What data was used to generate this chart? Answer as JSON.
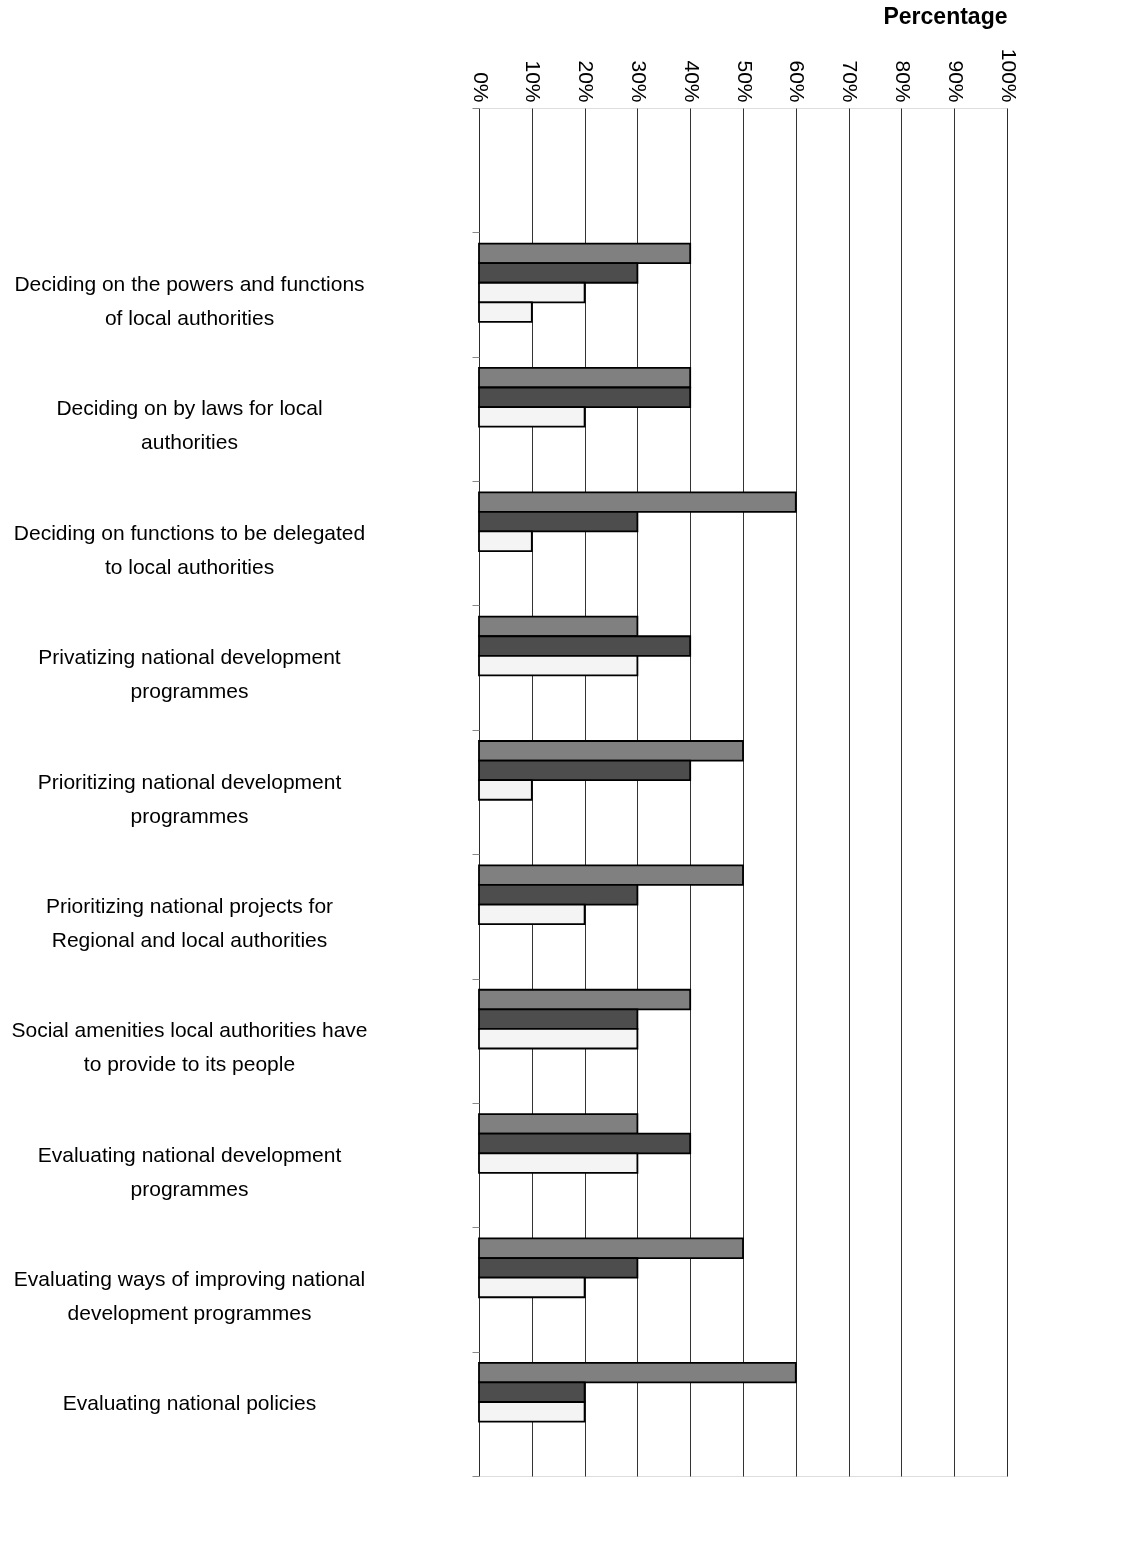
{
  "chart_data": {
    "type": "bar",
    "orientation": "horizontal",
    "xlabel": "Percentage",
    "categories": [
      null,
      "Deciding on the powers and functions\nof local authorities",
      "Deciding on by laws for local\nauthorities",
      "Deciding on functions to be delegated\nto local authorities",
      "Privatizing national development\nprogrammes",
      "Prioritizing national development\nprogrammes",
      "Prioritizing national projects for\nRegional and local authorities",
      "Social amenities local authorities have\nto provide to its people",
      "Evaluating national development\nprogrammes",
      "Evaluating ways of improving national\ndevelopment programmes",
      "Evaluating national policies"
    ],
    "series": [
      {
        "color": "#808080",
        "values": [
          null,
          40,
          40,
          60,
          30,
          50,
          50,
          40,
          30,
          50,
          60
        ]
      },
      {
        "color": "#4d4d4d",
        "values": [
          null,
          30,
          40,
          30,
          40,
          40,
          30,
          30,
          40,
          30,
          20
        ]
      },
      {
        "color": "#f4f4f4",
        "values": [
          null,
          20,
          20,
          10,
          30,
          10,
          20,
          30,
          30,
          20,
          20
        ]
      },
      {
        "color": "#f4f4f4",
        "values": [
          null,
          10,
          null,
          null,
          null,
          null,
          null,
          null,
          null,
          null,
          null
        ]
      }
    ],
    "xlim": [
      0,
      100
    ],
    "xticks": [
      {
        "value": 0,
        "label": "0%"
      },
      {
        "value": 10,
        "label": "10%"
      },
      {
        "value": 20,
        "label": "20%"
      },
      {
        "value": 30,
        "label": "30%"
      },
      {
        "value": 40,
        "label": "40%"
      },
      {
        "value": 50,
        "label": "50%"
      },
      {
        "value": 60,
        "label": "60%"
      },
      {
        "value": 70,
        "label": "70%"
      },
      {
        "value": 80,
        "label": "80%"
      },
      {
        "value": 90,
        "label": "90%"
      },
      {
        "value": 100,
        "label": "100%"
      }
    ],
    "grid": "x"
  }
}
